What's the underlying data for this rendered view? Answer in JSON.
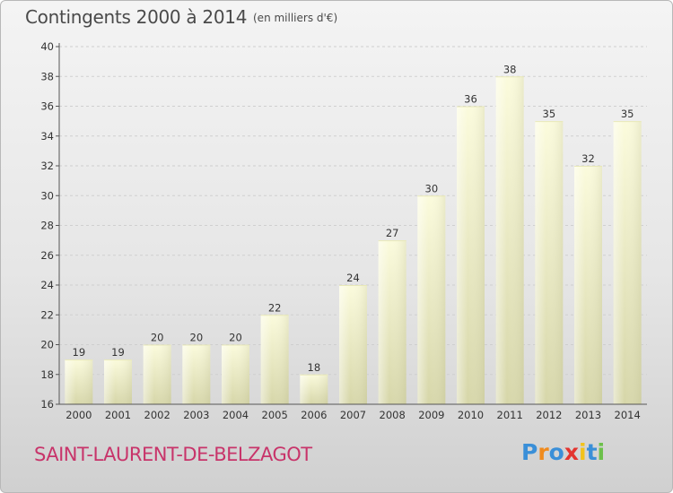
{
  "title": "Contingents 2000 à 2014",
  "unit": "(en milliers d'€)",
  "commune": "SAINT-LAURENT-DE-BELZAGOT",
  "logo": {
    "text": "Proxiti",
    "letters": [
      {
        "ch": "P",
        "color": "#3a8fd8"
      },
      {
        "ch": "r",
        "color": "#f08a1c"
      },
      {
        "ch": "o",
        "color": "#3a8fd8"
      },
      {
        "ch": "x",
        "color": "#e3342f"
      },
      {
        "ch": "i",
        "color": "#f2c21a"
      },
      {
        "ch": "t",
        "color": "#3a8fd8"
      },
      {
        "ch": "i",
        "color": "#6cc04a"
      }
    ]
  },
  "chart_data": {
    "type": "bar",
    "title": "Contingents 2000 à 2014",
    "ylabel": "(en milliers d'€)",
    "categories": [
      "2000",
      "2001",
      "2002",
      "2003",
      "2004",
      "2005",
      "2006",
      "2007",
      "2008",
      "2009",
      "2010",
      "2011",
      "2012",
      "2013",
      "2014"
    ],
    "values": [
      19,
      19,
      20,
      20,
      20,
      22,
      18,
      24,
      27,
      30,
      36,
      38,
      35,
      32,
      35
    ],
    "ylim": [
      16,
      40
    ],
    "yticks": [
      16,
      18,
      20,
      22,
      24,
      26,
      28,
      30,
      32,
      34,
      36,
      38,
      40
    ],
    "grid": true,
    "data_labels": true,
    "bar_color": "#f5f5c8"
  }
}
